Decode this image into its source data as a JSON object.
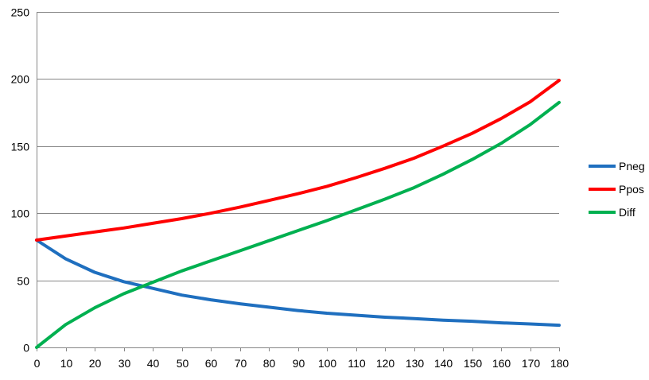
{
  "chart_data": {
    "type": "line",
    "title": "",
    "xlabel": "",
    "ylabel": "",
    "x": [
      0,
      10,
      20,
      30,
      40,
      50,
      60,
      70,
      80,
      90,
      100,
      110,
      120,
      130,
      140,
      150,
      160,
      170,
      180
    ],
    "xlim": [
      0,
      180
    ],
    "ylim": [
      0,
      250
    ],
    "y_ticks": [
      0,
      50,
      100,
      150,
      200,
      250
    ],
    "grid": "horizontal",
    "legend_position": "right",
    "series": [
      {
        "name": "Pneg",
        "color": "#1f6fbf",
        "values": [
          80,
          66,
          56,
          49,
          44,
          39,
          35.5,
          32.5,
          30,
          27.5,
          25.5,
          24,
          22.5,
          21.5,
          20.3,
          19.5,
          18.3,
          17.5,
          16.5
        ]
      },
      {
        "name": "Ppos",
        "color": "#ff0000",
        "values": [
          80,
          83,
          86,
          89,
          92.5,
          96,
          100,
          104.5,
          109.5,
          114.5,
          120,
          126.5,
          133.5,
          141,
          150,
          159.5,
          170.5,
          183,
          199
        ]
      },
      {
        "name": "Diff",
        "color": "#00b050",
        "values": [
          0,
          17,
          29.5,
          40,
          48.5,
          57,
          64.5,
          72,
          79.5,
          87,
          94.5,
          102.5,
          110.5,
          119,
          129,
          140,
          152,
          166,
          182.5
        ]
      }
    ]
  }
}
